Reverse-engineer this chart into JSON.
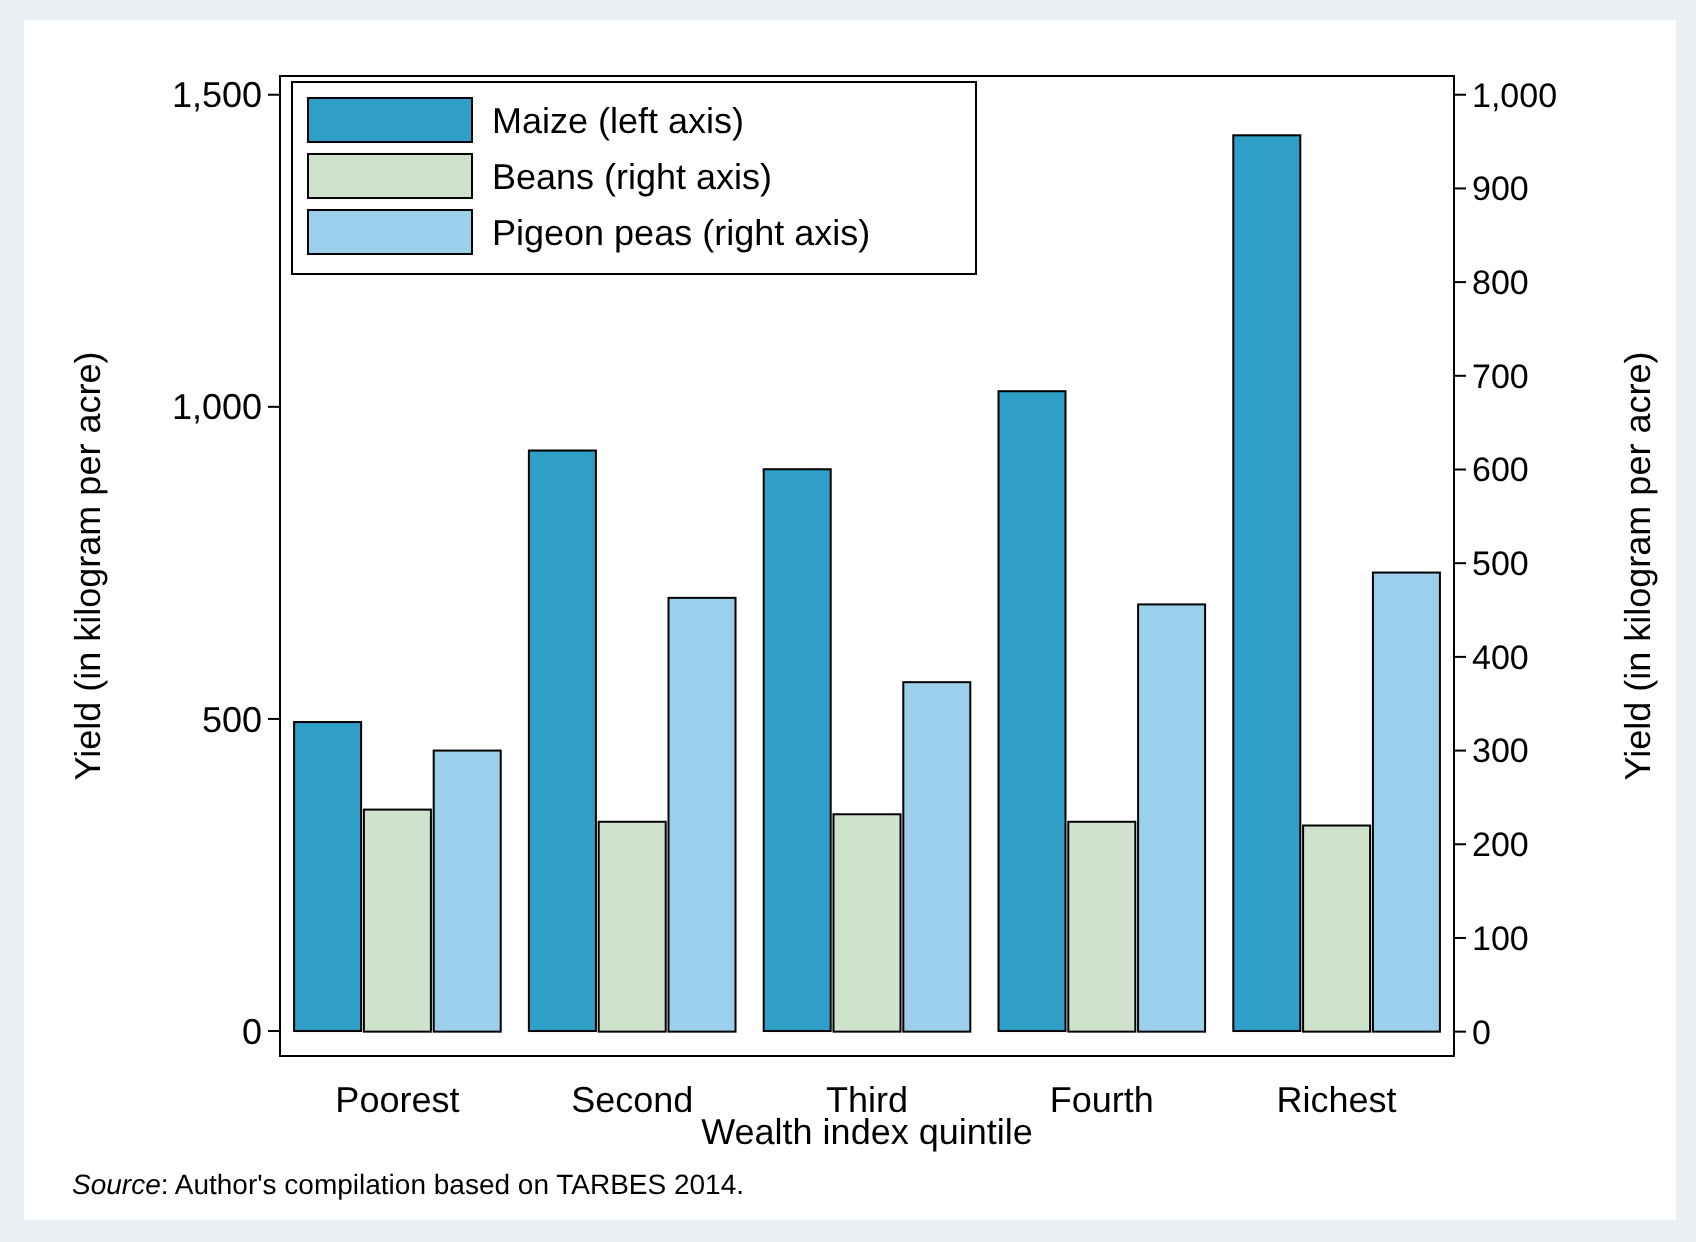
{
  "chart_data": {
    "type": "bar",
    "xlabel": "Wealth index quintile",
    "ylabel": "Yield (in kilogram per acre)",
    "y2label": "Yield (in kilogram per acre)",
    "categories": [
      "Poorest",
      "Second",
      "Third",
      "Fourth",
      "Richest"
    ],
    "series": [
      {
        "name": "Maize (left axis)",
        "color": "#2f9fc7",
        "values": [
          495,
          930,
          900,
          1025,
          1435
        ]
      },
      {
        "name": "Beans (right axis)",
        "color": "#cfe3cc",
        "values": [
          237,
          224,
          232,
          224,
          220
        ],
        "axis": "y2"
      },
      {
        "name": "Pigeon peas (right axis)",
        "color": "#9ccfec",
        "values": [
          300,
          463,
          373,
          456,
          490
        ],
        "axis": "y2"
      }
    ],
    "ylim": [
      -40,
      1530
    ],
    "yticks": [
      0,
      500,
      {
        "value": 1000,
        "label": "1,000"
      },
      {
        "value": 1500,
        "label": "1,500"
      }
    ],
    "y2lim": [
      -26,
      1020
    ],
    "y2ticks": [
      0,
      100,
      200,
      300,
      400,
      500,
      600,
      700,
      800,
      900,
      {
        "value": 1000,
        "label": "1,000"
      }
    ],
    "grid": false,
    "legend": "top left",
    "annotations": [
      "Source: Author's compilation based on TARBES 2014."
    ]
  }
}
